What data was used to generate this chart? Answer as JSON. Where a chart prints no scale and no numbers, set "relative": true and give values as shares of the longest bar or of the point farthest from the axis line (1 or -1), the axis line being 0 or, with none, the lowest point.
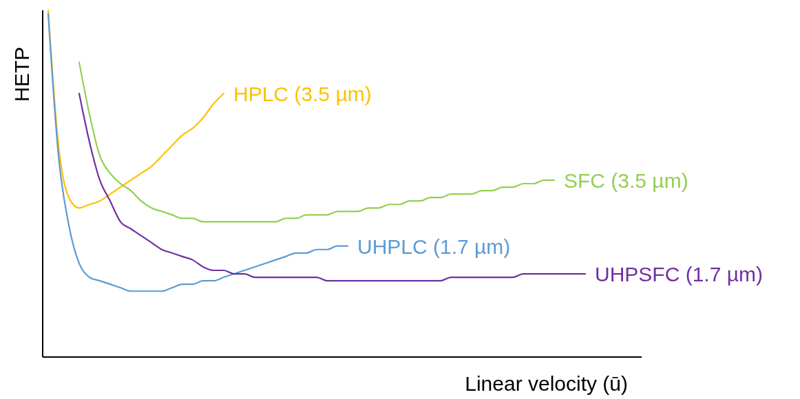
{
  "chart_data": {
    "type": "line",
    "relative": true,
    "xlabel": "Linear velocity (ū)",
    "ylabel": "HETP",
    "categories": [
      null,
      null,
      null,
      null,
      null,
      null,
      null,
      null,
      null,
      null,
      null,
      null,
      null,
      null,
      null,
      null,
      null,
      null,
      null,
      null,
      null,
      null,
      null,
      null,
      null,
      null,
      null,
      null,
      null,
      null,
      null,
      null,
      null,
      null,
      null,
      null,
      null,
      null,
      null,
      null,
      null,
      null,
      null,
      null,
      null,
      null,
      null,
      null,
      null,
      null,
      null,
      null,
      null
    ],
    "series": [
      {
        "name": "HPLC (3.5 µm)",
        "color": "#ffc000",
        "values": [
          1.0,
          0.61,
          0.46,
          0.43,
          0.44,
          0.45,
          0.47,
          0.49,
          0.51,
          0.53,
          0.55,
          0.58,
          0.61,
          0.64,
          0.66,
          0.69,
          0.73,
          0.76,
          null,
          null,
          null,
          null,
          null,
          null,
          null,
          null,
          null,
          null,
          null,
          null,
          null,
          null,
          null,
          null,
          null,
          null,
          null,
          null,
          null,
          null,
          null,
          null,
          null,
          null,
          null,
          null,
          null,
          null,
          null,
          null,
          null,
          null,
          null
        ]
      },
      {
        "name": "SFC (3.5 µm)",
        "color": "#92d050",
        "values": [
          null,
          null,
          null,
          0.85,
          0.7,
          0.58,
          0.53,
          0.5,
          0.48,
          0.45,
          0.43,
          0.42,
          0.41,
          0.4,
          0.4,
          0.39,
          0.39,
          0.39,
          0.39,
          0.39,
          0.39,
          0.39,
          0.39,
          0.4,
          0.4,
          0.41,
          0.41,
          0.41,
          0.42,
          0.42,
          0.42,
          0.43,
          0.43,
          0.44,
          0.44,
          0.45,
          0.45,
          0.46,
          0.46,
          0.47,
          0.47,
          0.47,
          0.48,
          0.48,
          0.49,
          0.49,
          0.5,
          0.5,
          0.51,
          0.51,
          null,
          null,
          null
        ]
      },
      {
        "name": "UHPLC (1.7 µm)",
        "color": "#5b9bd5",
        "values": [
          0.99,
          0.58,
          0.38,
          0.27,
          0.23,
          0.22,
          0.21,
          0.2,
          0.19,
          0.19,
          0.19,
          0.19,
          0.2,
          0.21,
          0.21,
          0.22,
          0.22,
          0.23,
          0.24,
          0.25,
          0.26,
          0.27,
          0.28,
          0.29,
          0.3,
          0.3,
          0.31,
          0.31,
          0.32,
          0.32,
          null,
          null,
          null,
          null,
          null,
          null,
          null,
          null,
          null,
          null,
          null,
          null,
          null,
          null,
          null,
          null,
          null,
          null,
          null,
          null,
          null,
          null,
          null
        ]
      },
      {
        "name": "UHPSFC (1.7 µm)",
        "color": "#7030a0",
        "values": [
          null,
          null,
          null,
          0.76,
          0.62,
          0.51,
          0.45,
          0.39,
          0.37,
          0.35,
          0.33,
          0.31,
          0.3,
          0.29,
          0.28,
          0.26,
          0.25,
          0.25,
          0.24,
          0.24,
          0.23,
          0.23,
          0.23,
          0.23,
          0.23,
          0.23,
          0.23,
          0.22,
          0.22,
          0.22,
          0.22,
          0.22,
          0.22,
          0.22,
          0.22,
          0.22,
          0.22,
          0.22,
          0.22,
          0.23,
          0.23,
          0.23,
          0.23,
          0.23,
          0.23,
          0.23,
          0.24,
          0.24,
          0.24,
          0.24,
          0.24,
          0.24,
          0.24
        ]
      }
    ]
  }
}
